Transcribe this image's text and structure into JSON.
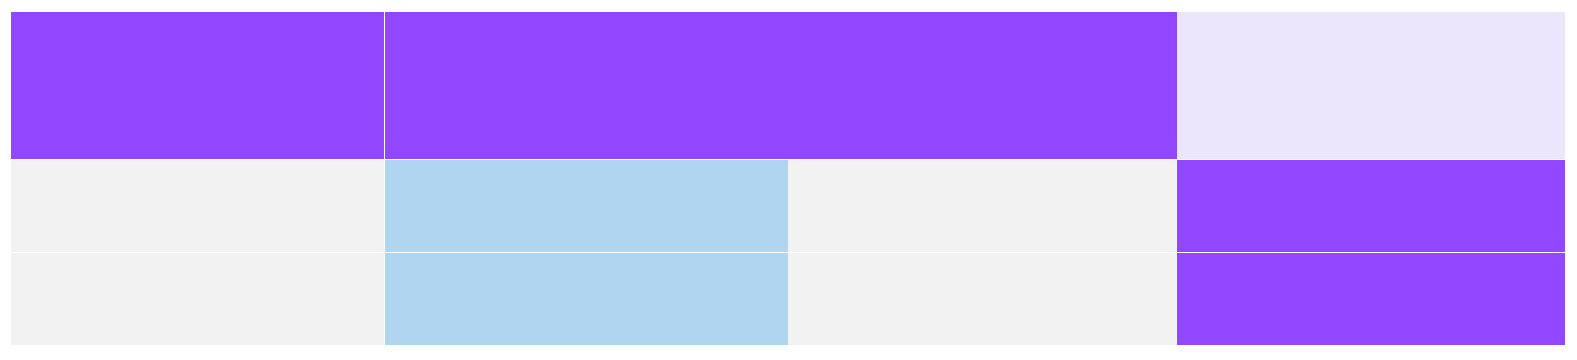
{
  "colors": {
    "purple": "#9147ff",
    "lavender": "#ebe6fc",
    "light_gray": "#f2f2f2",
    "light_blue": "#afd5f0"
  },
  "grid": {
    "rows": [
      [
        "purple",
        "purple",
        "purple",
        "lavender"
      ],
      [
        "light_gray",
        "light_blue",
        "light_gray",
        "purple"
      ],
      [
        "light_gray",
        "light_blue",
        "light_gray",
        "purple"
      ]
    ]
  }
}
